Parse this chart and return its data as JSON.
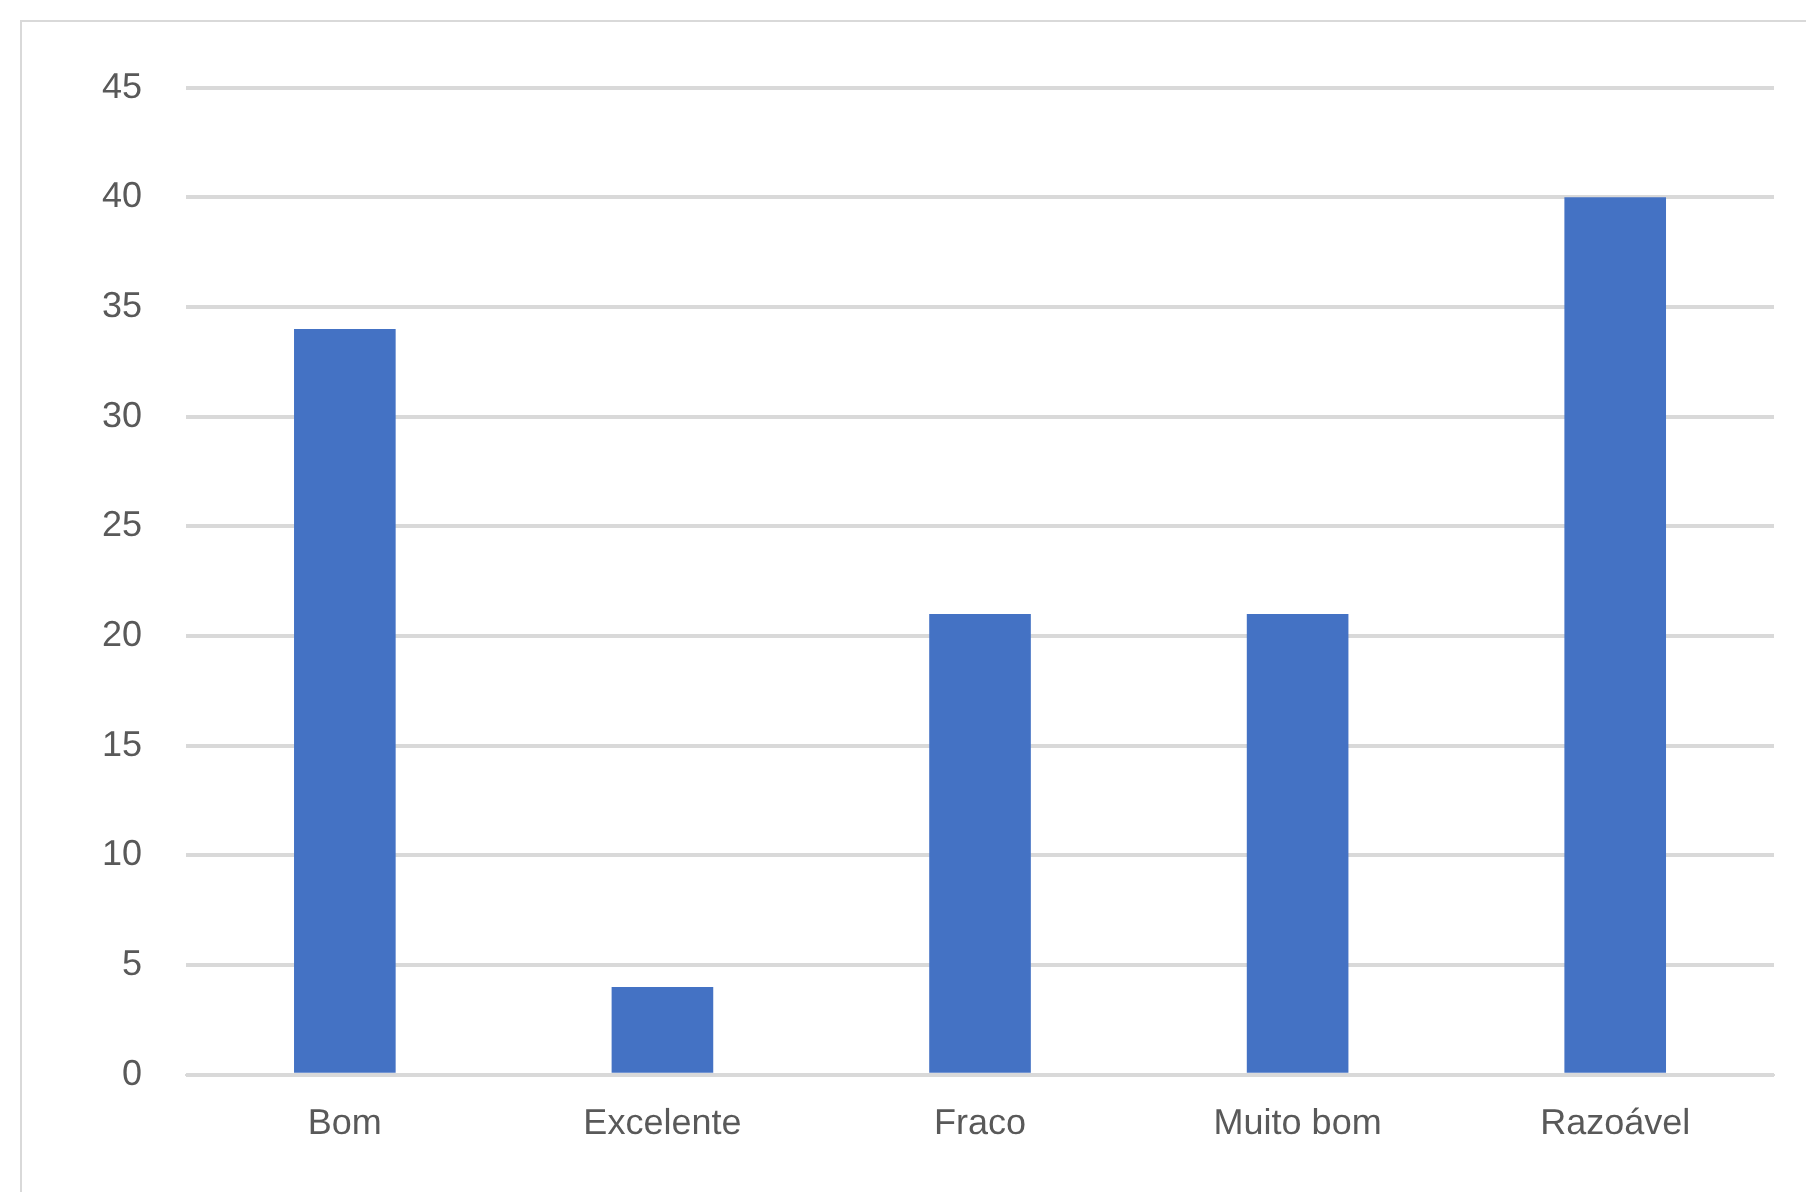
{
  "chart_data": {
    "type": "bar",
    "categories": [
      "Bom",
      "Excelente",
      "Fraco",
      "Muito bom",
      "Razoável"
    ],
    "values": [
      34,
      4,
      21,
      21,
      40
    ],
    "color": "#4472c4",
    "ylim": [
      0,
      45
    ],
    "yticks": [
      0,
      5,
      10,
      15,
      20,
      25,
      30,
      35,
      40,
      45
    ],
    "grid": "y",
    "legend": false
  }
}
